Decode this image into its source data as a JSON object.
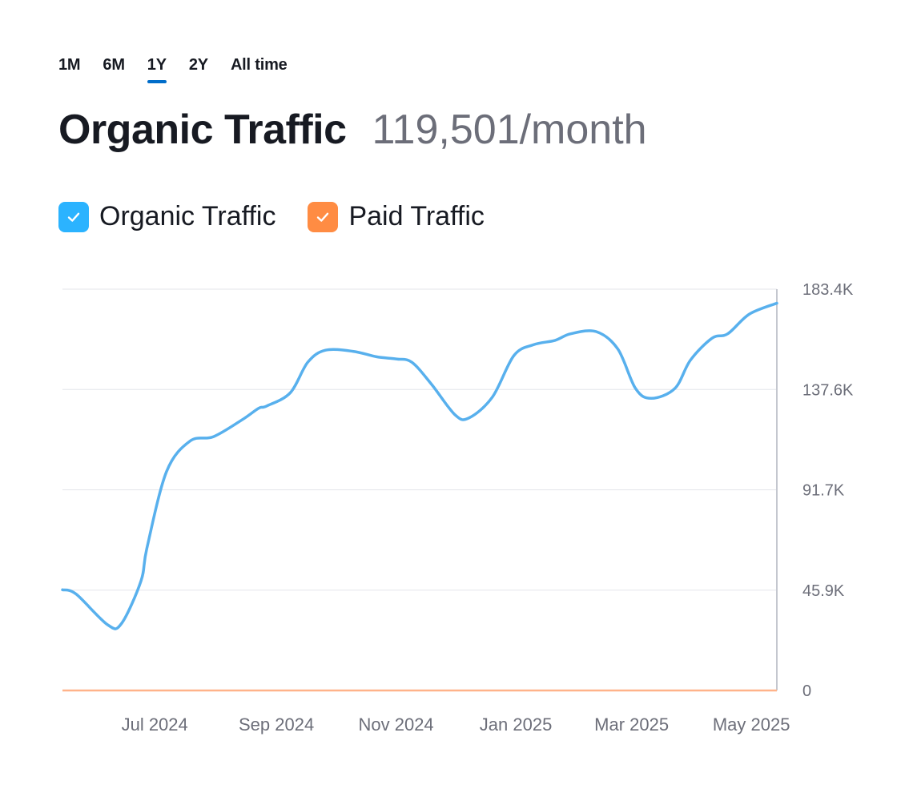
{
  "tabs": [
    {
      "label": "1M",
      "active": false
    },
    {
      "label": "6M",
      "active": false
    },
    {
      "label": "1Y",
      "active": true
    },
    {
      "label": "2Y",
      "active": false
    },
    {
      "label": "All time",
      "active": false
    }
  ],
  "header": {
    "title": "Organic Traffic",
    "value": "119,501/month"
  },
  "legend": [
    {
      "label": "Organic Traffic",
      "color": "#2bb3ff",
      "checked": true,
      "icon": "check-icon"
    },
    {
      "label": "Paid Traffic",
      "color": "#ff8c43",
      "checked": true,
      "icon": "check-icon"
    }
  ],
  "chart_data": {
    "type": "line",
    "x_tick_labels": [
      "Jul 2024",
      "Sep 2024",
      "Nov 2024",
      "Jan 2025",
      "Mar 2025",
      "May 2025"
    ],
    "y_tick_labels": [
      "0",
      "45.9K",
      "91.7K",
      "137.6K",
      "183.4K"
    ],
    "ylim": [
      0,
      183400
    ],
    "grid": true,
    "series": [
      {
        "name": "Organic Traffic",
        "color": "#58b0ed",
        "x": [
          "2024-05-15",
          "2024-05-22",
          "2024-06-07",
          "2024-06-14",
          "2024-06-24",
          "2024-06-27",
          "2024-07-07",
          "2024-07-19",
          "2024-07-31",
          "2024-08-15",
          "2024-08-23",
          "2024-08-27",
          "2024-09-08",
          "2024-09-17",
          "2024-09-26",
          "2024-10-10",
          "2024-10-22",
          "2024-11-01",
          "2024-11-09",
          "2024-11-19",
          "2024-12-01",
          "2024-12-08",
          "2024-12-20",
          "2024-12-31",
          "2025-01-10",
          "2025-01-21",
          "2025-01-29",
          "2025-02-11",
          "2025-02-22",
          "2025-03-03",
          "2025-03-11",
          "2025-03-23",
          "2025-03-31",
          "2025-04-11",
          "2025-04-19",
          "2025-04-30",
          "2025-05-14"
        ],
        "values": [
          46000,
          44000,
          30000,
          30500,
          50000,
          65000,
          100000,
          114000,
          116000,
          124000,
          129000,
          130000,
          136000,
          150000,
          155500,
          155000,
          152500,
          151500,
          150000,
          140000,
          126000,
          124500,
          134000,
          153000,
          158000,
          160000,
          163000,
          164000,
          156000,
          138000,
          133500,
          138000,
          151000,
          161000,
          163000,
          172000,
          177000
        ]
      },
      {
        "name": "Paid Traffic",
        "color": "#ffb38a",
        "x": [
          "2024-05-15",
          "2025-05-14"
        ],
        "values": [
          0,
          0
        ]
      }
    ]
  }
}
